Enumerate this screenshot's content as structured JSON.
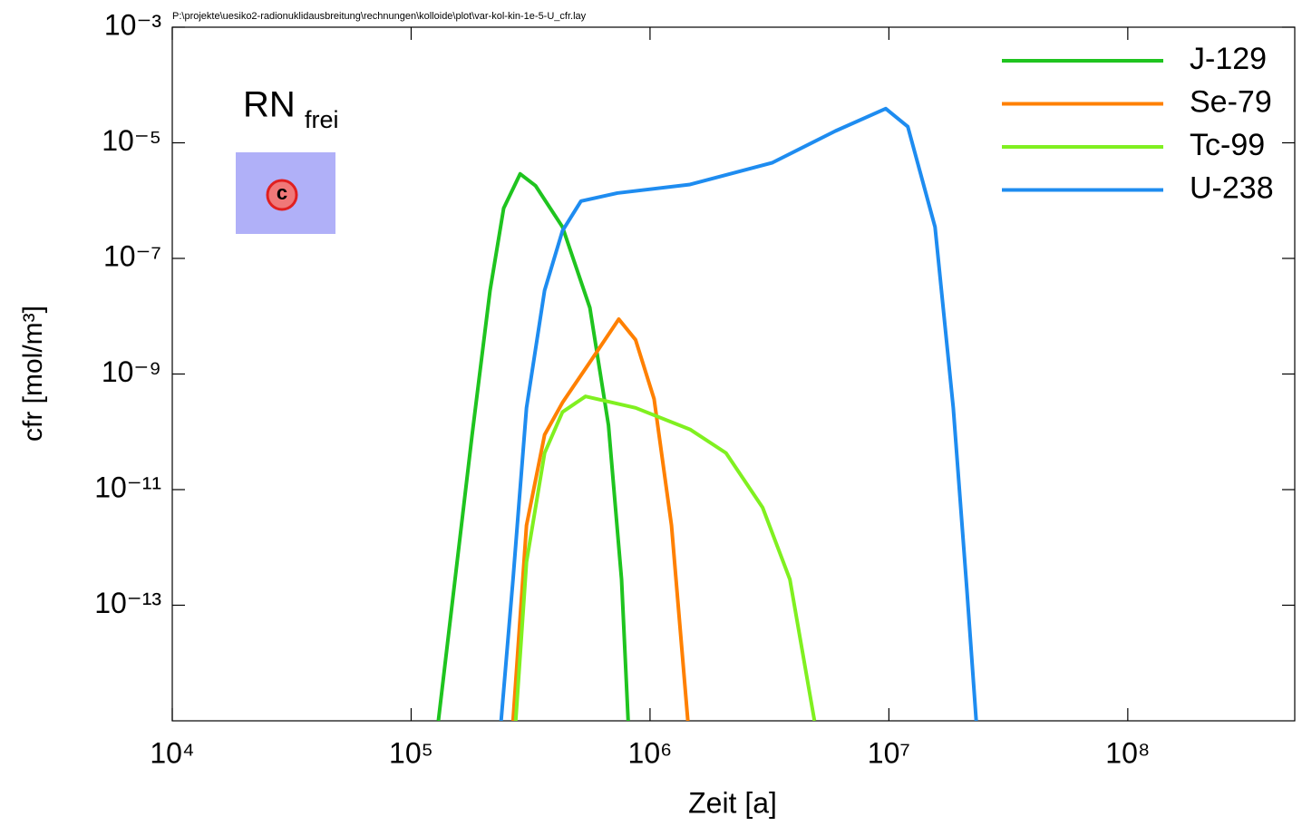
{
  "chart_data": {
    "type": "line",
    "source_path": "P:\\projekte\\uesiko2-radionuklidausbreitung\\rechnungen\\kolloide\\plot\\var-kol-kin-1e-5-U_cfr.lay",
    "x_label": "Zeit [a]",
    "y_label": "cfr [mol/m³]",
    "annotation": {
      "text": "RN",
      "subscript": "frei",
      "icon_label": "c"
    },
    "x_log": true,
    "y_log": true,
    "legend": "top-right",
    "xlim": [
      10000,
      500000000
    ],
    "ylim": [
      1e-15,
      0.001
    ],
    "xticks": [
      {
        "value": 10000,
        "label": "10⁴"
      },
      {
        "value": 100000,
        "label": "10⁵"
      },
      {
        "value": 1000000,
        "label": "10⁶"
      },
      {
        "value": 10000000,
        "label": "10⁷"
      },
      {
        "value": 100000000,
        "label": "10⁸"
      }
    ],
    "yticks": [
      {
        "value": 0.001,
        "label": "10⁻³"
      },
      {
        "value": 1e-05,
        "label": "10⁻⁵"
      },
      {
        "value": 1e-07,
        "label": "10⁻⁷"
      },
      {
        "value": 1e-09,
        "label": "10⁻⁹"
      },
      {
        "value": 1e-11,
        "label": "10⁻¹¹"
      },
      {
        "value": 1e-13,
        "label": "10⁻¹³"
      }
    ],
    "series": [
      {
        "name": "J-129",
        "color": "#1fc41f",
        "x": [
          130000,
          151000,
          180000,
          214000,
          244000,
          286000,
          332000,
          430000,
          560000,
          670000,
          760000,
          810000
        ],
        "values": [
          1e-15,
          1.9e-13,
          8.9e-11,
          2.8e-08,
          7.4e-07,
          2.9e-06,
          1.8e-06,
          3.5e-07,
          1.4e-08,
          1.3e-10,
          2.8e-13,
          1e-15
        ]
      },
      {
        "name": "Se-79",
        "color": "#ff8000",
        "x": [
          267000,
          304000,
          362000,
          430000,
          560000,
          740000,
          870000,
          1040000,
          1230000,
          1440000
        ],
        "values": [
          1e-15,
          2.4e-12,
          8.9e-11,
          3.2e-10,
          1.6e-09,
          8.9e-09,
          3.9e-09,
          3.7e-10,
          2.4e-12,
          1e-15
        ]
      },
      {
        "name": "Tc-99",
        "color": "#80f020",
        "x": [
          274000,
          304000,
          362000,
          430000,
          537000,
          870000,
          1470000,
          2080000,
          2960000,
          3850000,
          4880000
        ],
        "values": [
          1e-15,
          5.6e-13,
          4.3e-11,
          2.2e-10,
          4.1e-10,
          2.6e-10,
          1.1e-10,
          4.3e-11,
          4.9e-12,
          2.8e-13,
          1e-15
        ]
      },
      {
        "name": "U-238",
        "color": "#1e8cf0",
        "x": [
          238000,
          267000,
          304000,
          362000,
          430000,
          514000,
          730000,
          1470000,
          3240000,
          5970000,
          9700000,
          12000000,
          15600000,
          18600000,
          21200000,
          23200000
        ],
        "values": [
          1e-15,
          2.8e-13,
          2.6e-10,
          2.8e-08,
          3e-07,
          9.8e-07,
          1.35e-06,
          1.9e-06,
          4.5e-06,
          1.6e-05,
          3.9e-05,
          1.9e-05,
          3.5e-07,
          2.6e-10,
          1.9e-13,
          1e-15
        ]
      }
    ]
  }
}
